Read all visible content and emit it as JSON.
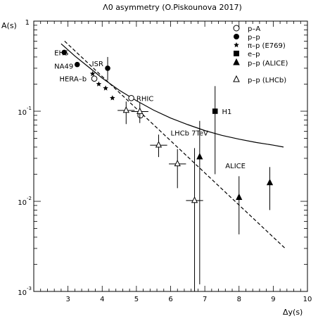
{
  "chart_data": {
    "type": "scatter",
    "title": "Λ0 asymmetry (O.Piskounova 2017)",
    "xlabel": "Δy(s)",
    "ylabel": "A(s)",
    "x_range": [
      2.0,
      10.0
    ],
    "y_range": [
      0.001,
      1.0
    ],
    "y_scale": "log",
    "grid": false,
    "x_ticks": [
      {
        "value": 3,
        "label": "3"
      },
      {
        "value": 4,
        "label": "4"
      },
      {
        "value": 5,
        "label": "5"
      },
      {
        "value": 6,
        "label": "6"
      },
      {
        "value": 7,
        "label": "7"
      },
      {
        "value": 8,
        "label": "8"
      },
      {
        "value": 9,
        "label": "9"
      },
      {
        "value": 10,
        "label": "10"
      }
    ],
    "y_ticks": [
      {
        "value": 1,
        "base": "1",
        "exp": ""
      },
      {
        "value": 0.1,
        "base": "10",
        "exp": "-1"
      },
      {
        "value": 0.01,
        "base": "10",
        "exp": "-2"
      },
      {
        "value": 0.001,
        "base": "10",
        "exp": "-3"
      }
    ],
    "legend": {
      "placement": "top-right",
      "entries": [
        {
          "label": "p–A",
          "marker": "open-circle"
        },
        {
          "label": "p–p",
          "marker": "filled-circle"
        },
        {
          "label": "π–p (E769)",
          "marker": "star"
        },
        {
          "label": "e–p",
          "marker": "filled-square"
        },
        {
          "label": "p–p (ALICE)",
          "marker": "filled-triangle"
        },
        {
          "label": "p–p (LHCb)",
          "marker": "open-triangle"
        }
      ]
    },
    "series": [
      {
        "label": "p–A",
        "marker": "open-circle",
        "points": [
          {
            "x": 3.77,
            "y": 0.23
          },
          {
            "x": 4.85,
            "y": 0.14
          },
          {
            "x": 5.12,
            "y": 0.09
          }
        ]
      },
      {
        "label": "p–p",
        "marker": "filled-circle",
        "points": [
          {
            "x": 2.89,
            "y": 0.45
          },
          {
            "x": 3.27,
            "y": 0.33
          },
          {
            "x": 4.16,
            "y": 0.3,
            "y_low": 0.22,
            "y_high": 0.4
          }
        ]
      },
      {
        "label": "π–p (E769)",
        "marker": "star",
        "points": [
          {
            "x": 3.72,
            "y": 0.26
          },
          {
            "x": 3.9,
            "y": 0.2
          },
          {
            "x": 4.1,
            "y": 0.18
          },
          {
            "x": 4.3,
            "y": 0.14
          }
        ]
      },
      {
        "label": "e–p",
        "marker": "filled-square",
        "points": [
          {
            "x": 7.3,
            "y": 0.1,
            "y_low": 0.02,
            "y_high": 0.19
          }
        ]
      },
      {
        "label": "p–p (ALICE)",
        "marker": "filled-triangle",
        "points": [
          {
            "x": 6.85,
            "y": 0.031,
            "y_low": 0.0012,
            "y_high": 0.078
          },
          {
            "x": 8.0,
            "y": 0.011,
            "y_low": 0.0043,
            "y_high": 0.019
          },
          {
            "x": 8.9,
            "y": 0.016,
            "y_low": 0.008,
            "y_high": 0.024
          }
        ]
      },
      {
        "label": "p–p (LHCb)",
        "marker": "open-triangle",
        "points": [
          {
            "x": 4.7,
            "y": 0.102,
            "x_err": 0.25,
            "y_low": 0.072,
            "y_high": 0.128
          },
          {
            "x": 5.1,
            "y": 0.099,
            "x_err": 0.25,
            "y_low": 0.074,
            "y_high": 0.125
          },
          {
            "x": 5.65,
            "y": 0.042,
            "x_err": 0.25,
            "y_low": 0.031,
            "y_high": 0.055
          },
          {
            "x": 6.2,
            "y": 0.026,
            "x_err": 0.25,
            "y_low": 0.014,
            "y_high": 0.038
          },
          {
            "x": 6.7,
            "y": 0.0102,
            "x_err": 0.25,
            "y_low": 0.001,
            "y_high": 0.039
          }
        ]
      }
    ],
    "curves": [
      {
        "style": "solid",
        "points": [
          [
            2.8,
            0.56
          ],
          [
            3.2,
            0.41
          ],
          [
            3.6,
            0.31
          ],
          [
            4.0,
            0.233
          ],
          [
            4.5,
            0.171
          ],
          [
            5.0,
            0.131
          ],
          [
            5.5,
            0.103
          ],
          [
            6.0,
            0.084
          ],
          [
            6.5,
            0.071
          ],
          [
            7.0,
            0.061
          ],
          [
            7.5,
            0.054
          ],
          [
            8.0,
            0.049
          ],
          [
            8.5,
            0.045
          ],
          [
            9.0,
            0.042
          ],
          [
            9.3,
            0.04
          ]
        ]
      },
      {
        "style": "dashed",
        "points": [
          [
            2.9,
            0.6
          ],
          [
            9.35,
            0.003
          ]
        ]
      }
    ],
    "annotations": [
      {
        "text": "EHS",
        "x": 2.6,
        "y": 0.45
      },
      {
        "text": "NA49",
        "x": 2.6,
        "y": 0.32
      },
      {
        "text": "ISR",
        "x": 3.7,
        "y": 0.34
      },
      {
        "text": "HERA–b",
        "x": 2.75,
        "y": 0.23
      },
      {
        "text": "RHIC",
        "x": 5.0,
        "y": 0.14
      },
      {
        "text": "H1",
        "x": 7.5,
        "y": 0.1
      },
      {
        "text": "LHCb 7TeV",
        "x": 6.0,
        "y": 0.058
      },
      {
        "text": "ALICE",
        "x": 7.6,
        "y": 0.025
      }
    ]
  }
}
